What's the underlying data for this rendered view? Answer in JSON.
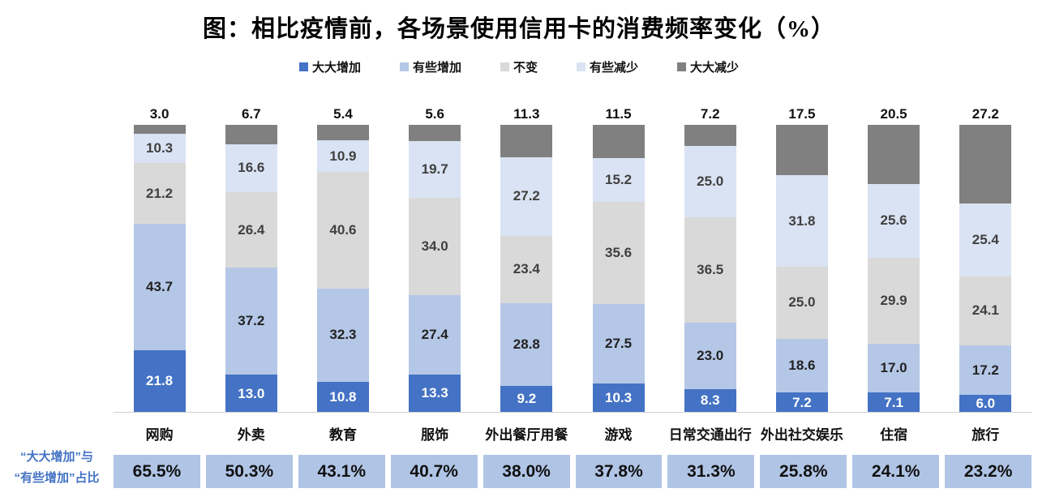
{
  "title": "图：相比疫情前，各场景使用信用卡的消费频率变化（%）",
  "legend": [
    {
      "label": "大大增加",
      "color": "#4472C4"
    },
    {
      "label": "有些增加",
      "color": "#B4C7E7"
    },
    {
      "label": "不变",
      "color": "#D9D9D9"
    },
    {
      "label": "有些减少",
      "color": "#DAE3F3"
    },
    {
      "label": "大大减少",
      "color": "#808080"
    }
  ],
  "chart_data": {
    "type": "bar",
    "stacked": true,
    "grid": false,
    "legend_position": "top",
    "ylim": [
      0,
      100
    ],
    "categories": [
      "网购",
      "外卖",
      "教育",
      "服饰",
      "外出餐厅用餐",
      "游戏",
      "日常交通出行",
      "外出社交娱乐",
      "住宿",
      "旅行"
    ],
    "series": [
      {
        "name": "大大增加",
        "color": "#4472C4",
        "label_color": "#FFFFFF",
        "label_above": false,
        "values": [
          21.8,
          13.0,
          10.8,
          13.3,
          9.2,
          10.3,
          8.3,
          7.2,
          7.1,
          6.0
        ]
      },
      {
        "name": "有些增加",
        "color": "#B4C7E7",
        "label_color": "#222222",
        "label_above": false,
        "values": [
          43.7,
          37.2,
          32.3,
          27.4,
          28.8,
          27.5,
          23.0,
          18.6,
          17.0,
          17.2
        ]
      },
      {
        "name": "不变",
        "color": "#D9D9D9",
        "label_color": "#404040",
        "label_above": false,
        "values": [
          21.2,
          26.4,
          40.6,
          34.0,
          23.4,
          35.6,
          36.5,
          25.0,
          29.9,
          24.1
        ]
      },
      {
        "name": "有些减少",
        "color": "#DAE3F3",
        "label_color": "#404040",
        "label_above": false,
        "values": [
          10.3,
          16.6,
          10.9,
          19.7,
          27.2,
          15.2,
          25.0,
          31.8,
          25.6,
          25.4
        ]
      },
      {
        "name": "大大减少",
        "color": "#808080",
        "label_color": "#111111",
        "label_above": true,
        "values": [
          3.0,
          6.7,
          5.4,
          5.6,
          11.3,
          11.5,
          7.2,
          17.5,
          20.5,
          27.2
        ]
      }
    ],
    "footer": {
      "label_lines": [
        "“大大增加”与",
        "“有些增加”占比"
      ],
      "values": [
        "65.5%",
        "50.3%",
        "43.1%",
        "40.7%",
        "38.0%",
        "37.8%",
        "31.3%",
        "25.8%",
        "24.1%",
        "23.2%"
      ]
    }
  }
}
